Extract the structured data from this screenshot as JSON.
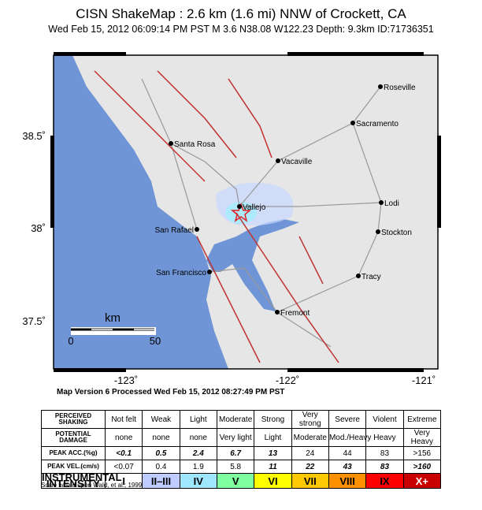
{
  "header": {
    "title": "CISN ShakeMap : 2.6 km (1.6 mi) NNW of Crockett, CA",
    "subtitle": "Wed Feb 15, 2012 06:09:14 PM PST   M 3.6   N38.08 W122.23   Depth: 9.3km   ID:71736351"
  },
  "map": {
    "cities": [
      "Roseville",
      "Sacramento",
      "Santa Rosa",
      "Vacaville",
      "Vallejo",
      "Lodi",
      "San Rafael",
      "Stockton",
      "San Francisco",
      "Tracy",
      "Fremont"
    ],
    "lat_labels": [
      "38.5˚",
      "38˚",
      "37.5˚"
    ],
    "lon_labels": [
      "-123˚",
      "-122˚",
      "-121˚"
    ],
    "scale": {
      "unit": "km",
      "start": "0",
      "end": "50"
    }
  },
  "version": "Map Version 6 Processed Wed Feb 15, 2012 08:27:49 PM PST",
  "table": {
    "rows": [
      {
        "label": "PERCEIVED SHAKING",
        "cells": [
          "Not felt",
          "Weak",
          "Light",
          "Moderate",
          "Strong",
          "Very strong",
          "Severe",
          "Violent",
          "Extreme"
        ]
      },
      {
        "label": "POTENTIAL DAMAGE",
        "cells": [
          "none",
          "none",
          "none",
          "Very light",
          "Light",
          "Moderate",
          "Mod./Heavy",
          "Heavy",
          "Very Heavy"
        ]
      },
      {
        "label": "PEAK ACC.(%g)",
        "cells": [
          "<0.1",
          "0.5",
          "2.4",
          "6.7",
          "13",
          "24",
          "44",
          "83",
          ">156"
        ]
      },
      {
        "label": "PEAK VEL.(cm/s)",
        "cells": [
          "<0.07",
          "0.4",
          "1.9",
          "5.8",
          "11",
          "22",
          "43",
          "83",
          ">160"
        ]
      },
      {
        "label": "INSTRUMENTAL INTENSITY",
        "cells": [
          "I",
          "II–III",
          "IV",
          "V",
          "VI",
          "VII",
          "VIII",
          "IX",
          "X+"
        ]
      }
    ],
    "intensity_colors": [
      "#ffffff",
      "#bfccff",
      "#a0e6ff",
      "#80ffa0",
      "#ffff00",
      "#ffc800",
      "#ff9100",
      "#ff0000",
      "#c80000"
    ]
  },
  "footnote": "Scale based upon Wald, et al.; 1999"
}
